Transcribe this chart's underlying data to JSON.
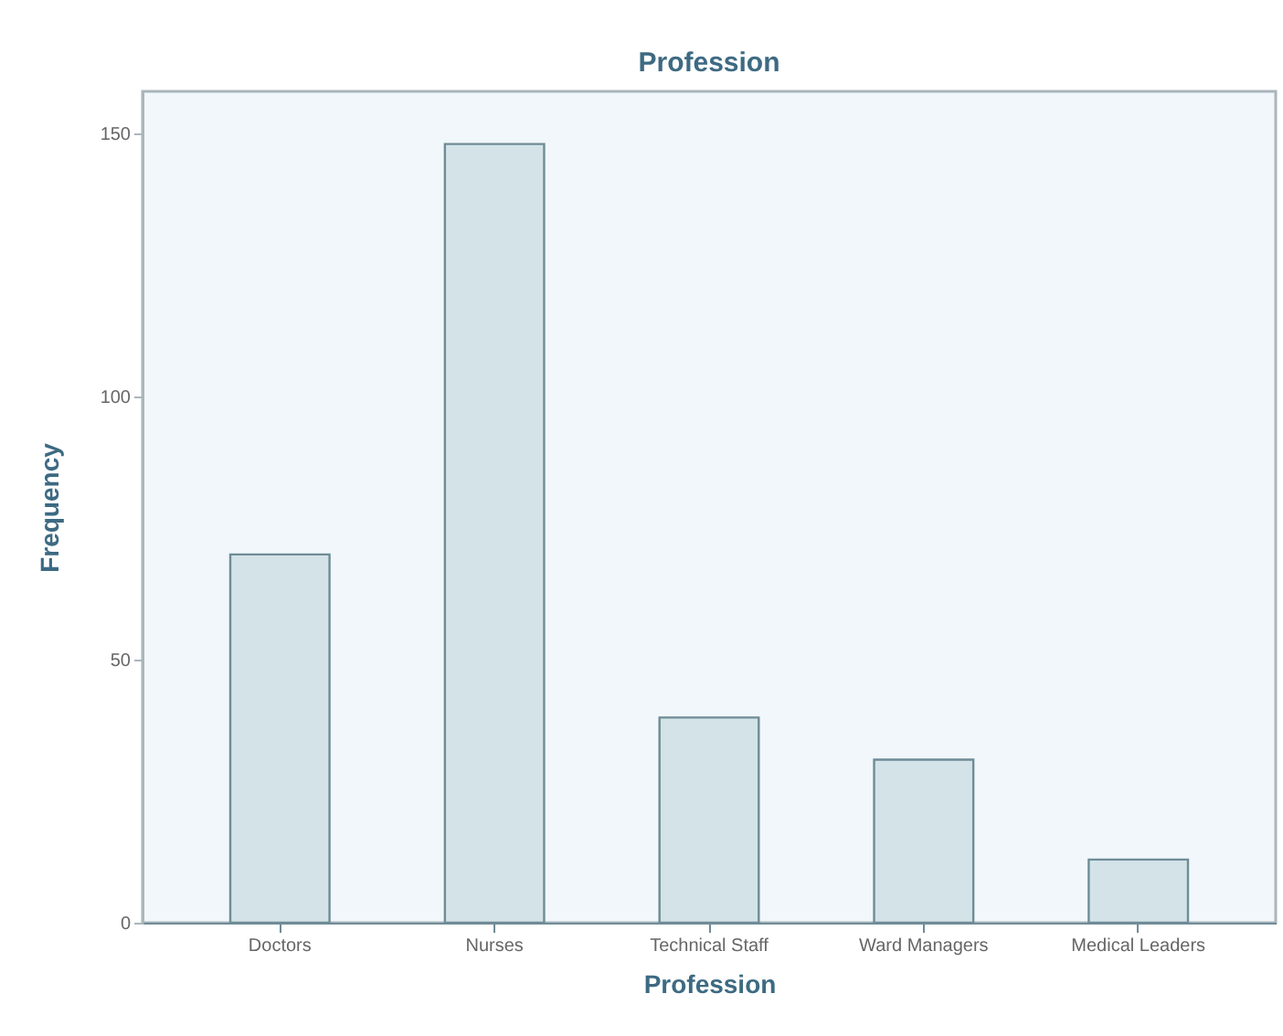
{
  "chart_data": {
    "type": "bar",
    "title": "Profession",
    "xlabel": "Profession",
    "ylabel": "Frequency",
    "categories": [
      "Doctors",
      "Nurses",
      "Technical Staff",
      "Ward Managers",
      "Medical Leaders"
    ],
    "values": [
      70,
      148,
      39,
      31,
      12
    ],
    "color": "#d3e3e8",
    "ylim": [
      0,
      158
    ],
    "yticks": [
      0,
      50,
      100,
      150
    ],
    "grid": false
  }
}
